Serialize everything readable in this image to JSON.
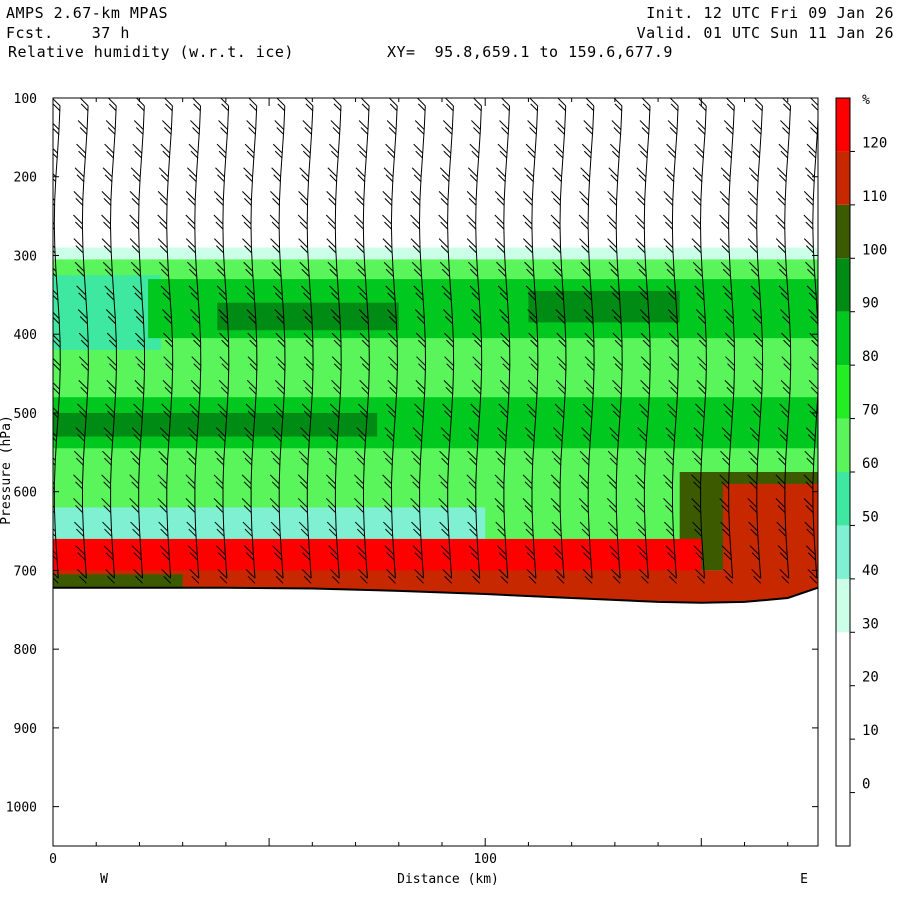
{
  "header": {
    "model": "AMPS 2.67-km MPAS",
    "fcst": "Fcst.    37 h",
    "field": "Relative humidity (w.r.t. ice)",
    "xy": "XY=  95.8,659.1 to 159.6,677.9",
    "init": "Init. 12 UTC Fri 09 Jan 26",
    "valid": "Valid. 01 UTC Sun 11 Jan 26"
  },
  "chart_data": {
    "type": "heatmap",
    "title": "Relative humidity (w.r.t. ice)",
    "xlabel": "Distance (km)",
    "ylabel": "Pressure (hPa)",
    "xlim": [
      0,
      177
    ],
    "ylim": [
      1050,
      100
    ],
    "x_ticks": [
      0,
      100
    ],
    "y_ticks": [
      100,
      200,
      300,
      400,
      500,
      600,
      700,
      800,
      900,
      1000
    ],
    "x_end_labels": [
      "W",
      "E"
    ],
    "colorbar": {
      "unit": "%",
      "levels": [
        0,
        10,
        20,
        30,
        40,
        50,
        60,
        70,
        80,
        90,
        100,
        110,
        120
      ],
      "bins": [
        {
          "min": -10,
          "max": 30,
          "color": "#ffffff"
        },
        {
          "min": 30,
          "max": 40,
          "color": "#ccffe8"
        },
        {
          "min": 40,
          "max": 50,
          "color": "#7ff0d2"
        },
        {
          "min": 50,
          "max": 60,
          "color": "#3ee8a0"
        },
        {
          "min": 60,
          "max": 70,
          "color": "#5af55a"
        },
        {
          "min": 70,
          "max": 80,
          "color": "#22ee22"
        },
        {
          "min": 80,
          "max": 90,
          "color": "#00c81e"
        },
        {
          "min": 90,
          "max": 100,
          "color": "#008c14"
        },
        {
          "min": 100,
          "max": 110,
          "color": "#3c5a00"
        },
        {
          "min": 110,
          "max": 120,
          "color": "#c82800"
        },
        {
          "min": 120,
          "max": 130,
          "color": "#ff0000"
        }
      ]
    },
    "terrain": {
      "x": [
        0,
        20,
        40,
        60,
        80,
        100,
        120,
        140,
        150,
        160,
        170,
        177
      ],
      "pressure": [
        722,
        722,
        722,
        723,
        726,
        730,
        735,
        740,
        741,
        740,
        735,
        722
      ]
    },
    "layers": [
      {
        "p_top": 290,
        "p_bottom": 305,
        "rh": 35,
        "x_from": 0,
        "x_to": 177
      },
      {
        "p_top": 305,
        "p_bottom": 660,
        "rh": 65,
        "x_from": 0,
        "x_to": 177
      },
      {
        "p_top": 325,
        "p_bottom": 420,
        "rh": 55,
        "x_from": 0,
        "x_to": 25
      },
      {
        "p_top": 330,
        "p_bottom": 405,
        "rh": 85,
        "x_from": 22,
        "x_to": 177
      },
      {
        "p_top": 360,
        "p_bottom": 395,
        "rh": 95,
        "x_from": 38,
        "x_to": 80
      },
      {
        "p_top": 345,
        "p_bottom": 385,
        "rh": 95,
        "x_from": 110,
        "x_to": 145
      },
      {
        "p_top": 480,
        "p_bottom": 545,
        "rh": 85,
        "x_from": 0,
        "x_to": 177
      },
      {
        "p_top": 500,
        "p_bottom": 530,
        "rh": 95,
        "x_from": 0,
        "x_to": 75
      },
      {
        "p_top": 545,
        "p_bottom": 615,
        "rh": 65,
        "x_from": 0,
        "x_to": 177
      },
      {
        "p_top": 575,
        "p_bottom": 700,
        "rh": 105,
        "x_from": 145,
        "x_to": 177
      },
      {
        "p_top": 590,
        "p_bottom": 700,
        "rh": 115,
        "x_from": 155,
        "x_to": 177
      },
      {
        "p_top": 620,
        "p_bottom": 660,
        "rh": 45,
        "x_from": 0,
        "x_to": 100
      },
      {
        "p_top": 660,
        "p_bottom": 705,
        "rh": 125,
        "x_from": 0,
        "x_to": 150
      },
      {
        "p_top": 700,
        "p_bottom": 745,
        "rh": 115,
        "x_from": 0,
        "x_to": 177
      },
      {
        "p_top": 705,
        "p_bottom": 745,
        "rh": 105,
        "x_from": 0,
        "x_to": 30
      }
    ],
    "wind_barbs": {
      "x_spacing_km": 6.5,
      "p_levels": [
        110,
        140,
        170,
        200,
        230,
        260,
        290,
        320,
        350,
        380,
        410,
        440,
        470,
        500,
        530,
        560,
        590,
        620,
        650,
        680,
        710
      ]
    }
  }
}
